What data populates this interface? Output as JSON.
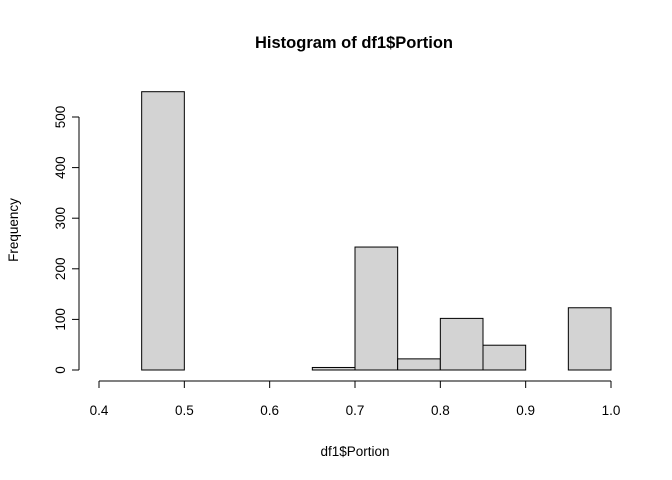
{
  "chart_data": {
    "type": "bar",
    "title": "Histogram of df1$Portion",
    "xlabel": "df1$Portion",
    "ylabel": "Frequency",
    "bin_edges": [
      0.4,
      0.45,
      0.5,
      0.55,
      0.6,
      0.65,
      0.7,
      0.75,
      0.8,
      0.85,
      0.9,
      0.95,
      1.0
    ],
    "values": [
      0,
      550,
      0,
      0,
      0,
      5,
      243,
      22,
      102,
      49,
      0,
      123
    ],
    "xlim": [
      0.4,
      1.0
    ],
    "ylim": [
      0,
      500
    ],
    "x_ticks": [
      0.4,
      0.5,
      0.6,
      0.7,
      0.8,
      0.9,
      1.0
    ],
    "x_tick_labels": [
      "0.4",
      "0.5",
      "0.6",
      "0.7",
      "0.8",
      "0.9",
      "1.0"
    ],
    "y_ticks": [
      0,
      100,
      200,
      300,
      400,
      500
    ],
    "y_tick_labels": [
      "0",
      "100",
      "200",
      "300",
      "400",
      "500"
    ],
    "grid": false,
    "bar_color": "#d3d3d3",
    "border_color": "#000000"
  }
}
